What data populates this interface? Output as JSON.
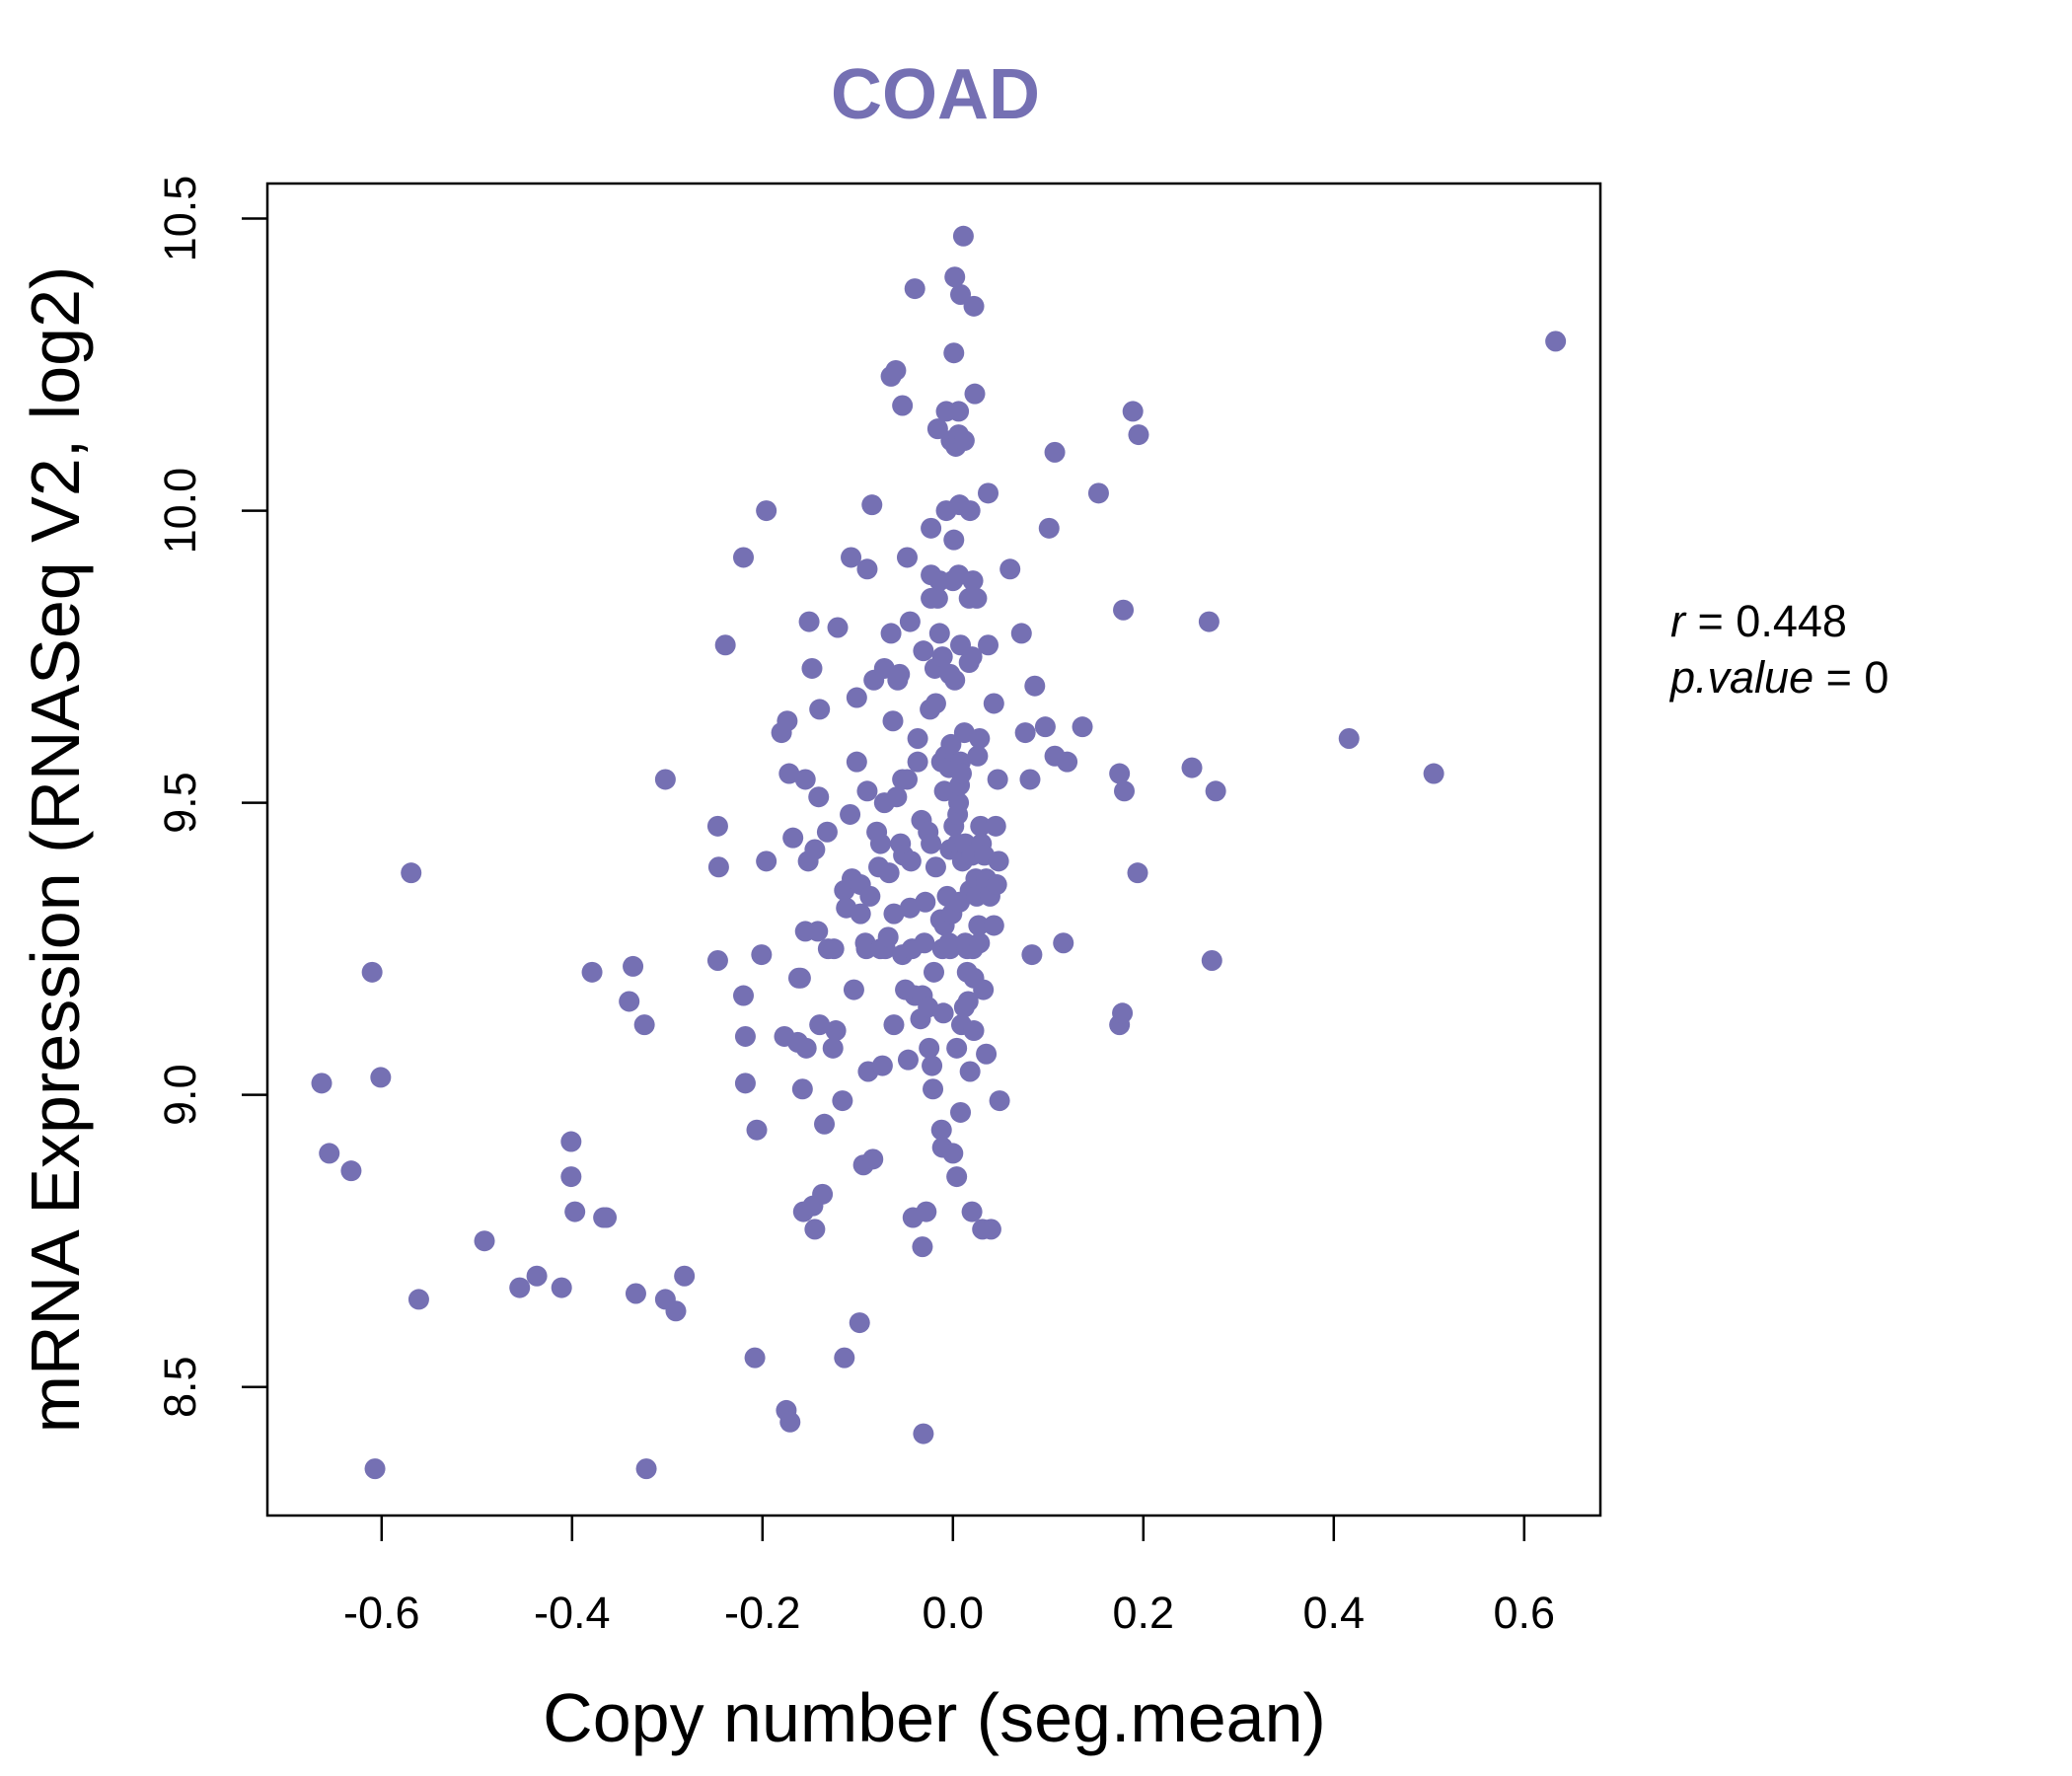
{
  "chart_data": {
    "type": "scatter",
    "title": "COAD",
    "xlabel": "Copy number (seg.mean)",
    "ylabel": "mRNA Expression (RNASeq V2, log2)",
    "xlim": [
      -0.72,
      0.68
    ],
    "ylim": [
      8.28,
      10.56
    ],
    "x_ticks": [
      "-0.6",
      "-0.4",
      "-0.2",
      "0.0",
      "0.2",
      "0.4",
      "0.6"
    ],
    "y_ticks": [
      "8.5",
      "9.0",
      "9.5",
      "10.0",
      "10.5"
    ],
    "grid": false,
    "legend": "none",
    "colors": {
      "points": "#7570B3",
      "title": "#7570B3",
      "axes": "#000000"
    },
    "annotations": [
      {
        "label": "r",
        "value": "0.448"
      },
      {
        "label": "p.value",
        "value": "0"
      }
    ],
    "points": [
      [
        -0.663,
        9.02
      ],
      [
        -0.655,
        8.9
      ],
      [
        -0.632,
        8.87
      ],
      [
        -0.61,
        9.21
      ],
      [
        -0.607,
        8.36
      ],
      [
        -0.601,
        9.03
      ],
      [
        -0.569,
        9.38
      ],
      [
        -0.561,
        8.65
      ],
      [
        -0.492,
        8.75
      ],
      [
        -0.455,
        8.67
      ],
      [
        -0.437,
        8.69
      ],
      [
        -0.411,
        8.67
      ],
      [
        -0.401,
        8.92
      ],
      [
        -0.401,
        8.86
      ],
      [
        -0.397,
        8.8
      ],
      [
        -0.379,
        9.21
      ],
      [
        -0.367,
        8.79
      ],
      [
        -0.364,
        8.79
      ],
      [
        -0.34,
        9.16
      ],
      [
        -0.336,
        9.22
      ],
      [
        -0.333,
        8.66
      ],
      [
        -0.324,
        9.12
      ],
      [
        -0.322,
        8.36
      ],
      [
        -0.302,
        9.54
      ],
      [
        -0.302,
        8.65
      ],
      [
        -0.291,
        8.63
      ],
      [
        -0.282,
        8.69
      ],
      [
        -0.247,
        9.46
      ],
      [
        -0.246,
        9.39
      ],
      [
        -0.247,
        9.23
      ],
      [
        -0.239,
        9.77
      ],
      [
        -0.22,
        9.92
      ],
      [
        -0.22,
        9.17
      ],
      [
        -0.218,
        9.1
      ],
      [
        -0.218,
        9.02
      ],
      [
        -0.208,
        8.55
      ],
      [
        -0.206,
        8.94
      ],
      [
        -0.201,
        9.24
      ],
      [
        -0.196,
        10.0
      ],
      [
        -0.196,
        9.4
      ],
      [
        -0.18,
        9.62
      ],
      [
        -0.174,
        9.64
      ],
      [
        -0.177,
        9.1
      ],
      [
        -0.175,
        8.46
      ],
      [
        -0.171,
        8.44
      ],
      [
        -0.172,
        9.55
      ],
      [
        -0.168,
        9.44
      ],
      [
        -0.163,
        9.09
      ],
      [
        -0.162,
        9.2
      ],
      [
        -0.158,
        9.01
      ],
      [
        -0.16,
        9.2
      ],
      [
        -0.157,
        8.8
      ],
      [
        -0.155,
        9.54
      ],
      [
        -0.154,
        9.08
      ],
      [
        -0.155,
        9.28
      ],
      [
        -0.151,
        9.81
      ],
      [
        -0.152,
        9.4
      ],
      [
        -0.148,
        9.73
      ],
      [
        -0.147,
        8.81
      ],
      [
        -0.145,
        8.77
      ],
      [
        -0.145,
        9.42
      ],
      [
        -0.142,
        9.28
      ],
      [
        -0.141,
        9.51
      ],
      [
        -0.14,
        9.12
      ],
      [
        -0.14,
        9.66
      ],
      [
        -0.137,
        8.83
      ],
      [
        -0.135,
        8.95
      ],
      [
        -0.132,
        9.45
      ],
      [
        -0.131,
        9.25
      ],
      [
        -0.126,
        9.08
      ],
      [
        -0.125,
        9.25
      ],
      [
        -0.123,
        9.11
      ],
      [
        -0.121,
        9.8
      ],
      [
        -0.116,
        8.99
      ],
      [
        -0.114,
        8.55
      ],
      [
        -0.114,
        9.35
      ],
      [
        -0.112,
        9.32
      ],
      [
        -0.107,
        9.92
      ],
      [
        -0.108,
        9.48
      ],
      [
        -0.106,
        9.37
      ],
      [
        -0.104,
        9.18
      ],
      [
        -0.101,
        9.68
      ],
      [
        -0.101,
        9.57
      ],
      [
        -0.098,
        8.61
      ],
      [
        -0.097,
        9.31
      ],
      [
        -0.097,
        9.36
      ],
      [
        -0.094,
        8.88
      ],
      [
        -0.092,
        9.26
      ],
      [
        -0.091,
        9.25
      ],
      [
        -0.09,
        9.9
      ],
      [
        -0.09,
        9.52
      ],
      [
        -0.089,
        9.04
      ],
      [
        -0.087,
        9.34
      ],
      [
        -0.085,
        10.01
      ],
      [
        -0.084,
        8.89
      ],
      [
        -0.083,
        9.71
      ],
      [
        -0.08,
        9.45
      ],
      [
        -0.078,
        9.39
      ],
      [
        -0.076,
        9.25
      ],
      [
        -0.076,
        9.43
      ],
      [
        -0.074,
        9.05
      ],
      [
        -0.072,
        9.73
      ],
      [
        -0.072,
        9.5
      ],
      [
        -0.071,
        9.25
      ],
      [
        -0.068,
        9.27
      ],
      [
        -0.067,
        9.38
      ],
      [
        -0.065,
        10.23
      ],
      [
        -0.065,
        9.79
      ],
      [
        -0.063,
        9.64
      ],
      [
        -0.062,
        9.12
      ],
      [
        -0.062,
        9.31
      ],
      [
        -0.06,
        10.24
      ],
      [
        -0.059,
        9.51
      ],
      [
        -0.058,
        9.71
      ],
      [
        -0.056,
        9.72
      ],
      [
        -0.055,
        9.43
      ],
      [
        -0.053,
        9.54
      ],
      [
        -0.053,
        9.24
      ],
      [
        -0.053,
        10.18
      ],
      [
        -0.052,
        9.41
      ],
      [
        -0.05,
        9.18
      ],
      [
        -0.048,
        9.92
      ],
      [
        -0.048,
        9.54
      ],
      [
        -0.047,
        9.06
      ],
      [
        -0.045,
        9.81
      ],
      [
        -0.045,
        9.32
      ],
      [
        -0.044,
        9.4
      ],
      [
        -0.043,
        9.25
      ],
      [
        -0.042,
        8.79
      ],
      [
        -0.04,
        10.38
      ],
      [
        -0.04,
        9.17
      ],
      [
        -0.037,
        9.57
      ],
      [
        -0.037,
        9.61
      ],
      [
        -0.034,
        9.13
      ],
      [
        -0.033,
        9.47
      ],
      [
        -0.032,
        8.74
      ],
      [
        -0.032,
        9.17
      ],
      [
        -0.031,
        9.76
      ],
      [
        -0.031,
        8.42
      ],
      [
        -0.03,
        9.26
      ],
      [
        -0.029,
        9.33
      ],
      [
        -0.028,
        8.8
      ],
      [
        -0.026,
        9.45
      ],
      [
        -0.026,
        9.15
      ],
      [
        -0.025,
        9.08
      ],
      [
        -0.024,
        9.66
      ],
      [
        -0.023,
        9.97
      ],
      [
        -0.023,
        9.85
      ],
      [
        -0.023,
        9.43
      ],
      [
        -0.023,
        9.89
      ],
      [
        -0.022,
        9.05
      ],
      [
        -0.021,
        9.01
      ],
      [
        -0.02,
        9.21
      ],
      [
        -0.019,
        9.73
      ],
      [
        -0.018,
        9.67
      ],
      [
        -0.018,
        9.39
      ],
      [
        -0.016,
        9.85
      ],
      [
        -0.016,
        10.14
      ],
      [
        -0.014,
        9.88
      ],
      [
        -0.014,
        9.79
      ],
      [
        -0.013,
        9.3
      ],
      [
        -0.012,
        8.94
      ],
      [
        -0.012,
        9.57
      ],
      [
        -0.011,
        8.91
      ],
      [
        -0.011,
        9.25
      ],
      [
        -0.011,
        9.75
      ],
      [
        -0.01,
        9.14
      ],
      [
        -0.009,
        9.52
      ],
      [
        -0.009,
        9.29
      ],
      [
        -0.008,
        9.58
      ],
      [
        -0.007,
        10.17
      ],
      [
        -0.007,
        10.0
      ],
      [
        -0.006,
        9.34
      ],
      [
        -0.004,
        9.56
      ],
      [
        -0.004,
        9.26
      ],
      [
        -0.003,
        9.72
      ],
      [
        -0.003,
        9.25
      ],
      [
        -0.003,
        9.42
      ],
      [
        -0.002,
        10.12
      ],
      [
        -0.002,
        9.6
      ],
      [
        -0.001,
        9.31
      ],
      [
        0.0,
        9.88
      ],
      [
        0.0,
        8.9
      ],
      [
        0.001,
        9.95
      ],
      [
        0.001,
        9.46
      ],
      [
        0.001,
        10.27
      ],
      [
        0.002,
        10.4
      ],
      [
        0.002,
        9.71
      ],
      [
        0.003,
        10.11
      ],
      [
        0.004,
        9.08
      ],
      [
        0.004,
        8.86
      ],
      [
        0.005,
        9.43
      ],
      [
        0.005,
        9.48
      ],
      [
        0.006,
        10.13
      ],
      [
        0.006,
        9.89
      ],
      [
        0.006,
        9.5
      ],
      [
        0.006,
        10.17
      ],
      [
        0.007,
        9.33
      ],
      [
        0.007,
        10.01
      ],
      [
        0.007,
        9.53
      ],
      [
        0.008,
        8.97
      ],
      [
        0.008,
        9.77
      ],
      [
        0.008,
        10.37
      ],
      [
        0.008,
        9.57
      ],
      [
        0.009,
        9.55
      ],
      [
        0.009,
        9.12
      ],
      [
        0.01,
        9.4
      ],
      [
        0.011,
        10.47
      ],
      [
        0.012,
        9.62
      ],
      [
        0.012,
        10.12
      ],
      [
        0.012,
        9.15
      ],
      [
        0.013,
        9.26
      ],
      [
        0.013,
        9.43
      ],
      [
        0.015,
        9.21
      ],
      [
        0.015,
        9.25
      ],
      [
        0.016,
        9.16
      ],
      [
        0.017,
        9.85
      ],
      [
        0.017,
        9.74
      ],
      [
        0.018,
        10.0
      ],
      [
        0.018,
        9.04
      ],
      [
        0.018,
        9.35
      ],
      [
        0.02,
        8.8
      ],
      [
        0.02,
        9.41
      ],
      [
        0.02,
        9.75
      ],
      [
        0.021,
        9.88
      ],
      [
        0.021,
        9.25
      ],
      [
        0.022,
        9.11
      ],
      [
        0.022,
        10.35
      ],
      [
        0.022,
        9.2
      ],
      [
        0.023,
        10.2
      ],
      [
        0.024,
        9.37
      ],
      [
        0.025,
        9.85
      ],
      [
        0.025,
        9.34
      ],
      [
        0.026,
        9.58
      ],
      [
        0.027,
        9.29
      ],
      [
        0.028,
        9.26
      ],
      [
        0.028,
        9.61
      ],
      [
        0.029,
        9.46
      ],
      [
        0.03,
        9.43
      ],
      [
        0.031,
        8.77
      ],
      [
        0.032,
        9.18
      ],
      [
        0.033,
        9.41
      ],
      [
        0.035,
        9.37
      ],
      [
        0.035,
        9.07
      ],
      [
        0.037,
        10.03
      ],
      [
        0.037,
        9.77
      ],
      [
        0.039,
        9.34
      ],
      [
        0.04,
        8.77
      ],
      [
        0.043,
        9.67
      ],
      [
        0.043,
        9.29
      ],
      [
        0.045,
        9.46
      ],
      [
        0.046,
        9.36
      ],
      [
        0.047,
        9.54
      ],
      [
        0.048,
        9.4
      ],
      [
        0.049,
        8.99
      ],
      [
        0.06,
        9.9
      ],
      [
        0.072,
        9.79
      ],
      [
        0.076,
        9.62
      ],
      [
        0.081,
        9.54
      ],
      [
        0.083,
        9.24
      ],
      [
        0.086,
        9.7
      ],
      [
        0.097,
        9.63
      ],
      [
        0.101,
        9.97
      ],
      [
        0.107,
        10.1
      ],
      [
        0.107,
        9.58
      ],
      [
        0.116,
        9.26
      ],
      [
        0.12,
        9.57
      ],
      [
        0.136,
        9.63
      ],
      [
        0.153,
        10.03
      ],
      [
        0.175,
        9.55
      ],
      [
        0.175,
        9.12
      ],
      [
        0.178,
        9.14
      ],
      [
        0.179,
        9.83
      ],
      [
        0.18,
        9.52
      ],
      [
        0.189,
        10.17
      ],
      [
        0.194,
        9.38
      ],
      [
        0.195,
        10.13
      ],
      [
        0.251,
        9.56
      ],
      [
        0.269,
        9.81
      ],
      [
        0.272,
        9.23
      ],
      [
        0.276,
        9.52
      ],
      [
        0.416,
        9.61
      ],
      [
        0.505,
        9.55
      ],
      [
        0.633,
        10.29
      ]
    ]
  }
}
